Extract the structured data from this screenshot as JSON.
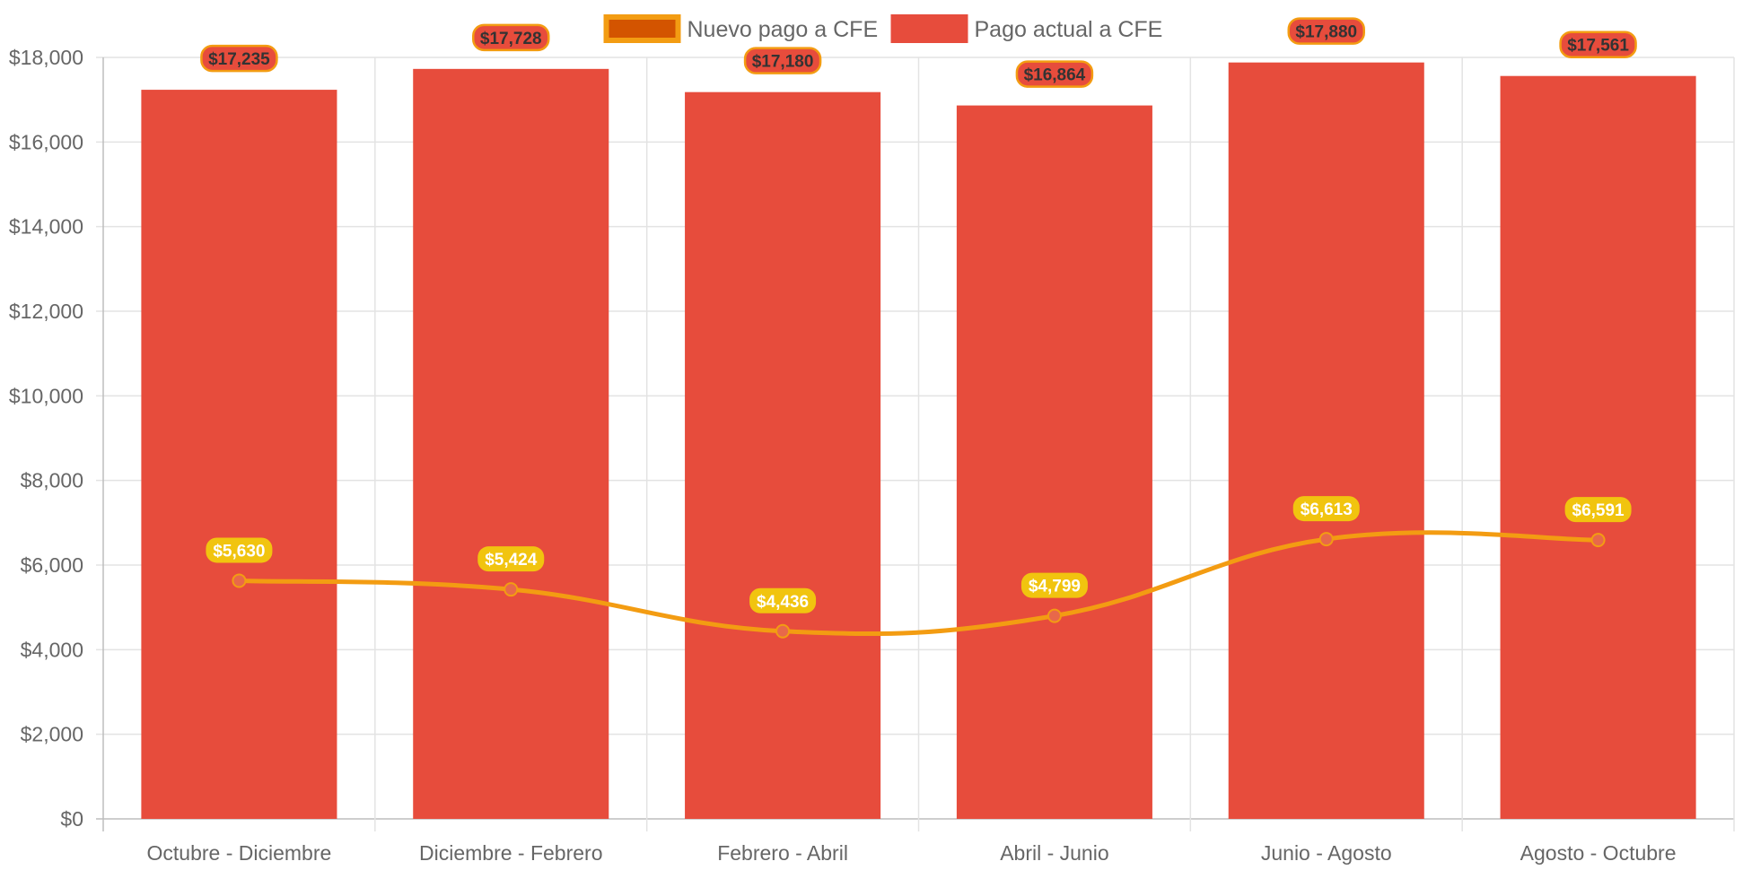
{
  "chart_data": {
    "type": "bar",
    "categories": [
      "Octubre - Diciembre",
      "Diciembre - Febrero",
      "Febrero - Abril",
      "Abril - Junio",
      "Junio - Agosto",
      "Agosto - Octubre"
    ],
    "series": [
      {
        "name": "Nuevo pago a CFE",
        "type": "line",
        "values": [
          5630,
          5424,
          4436,
          4799,
          6613,
          6591
        ],
        "labels": [
          "$5,630",
          "$5,424",
          "$4,436",
          "$4,799",
          "$6,613",
          "$6,591"
        ],
        "color": "#f39c12",
        "point_color": "#e8684a",
        "label_bg": "#f1c40f"
      },
      {
        "name": "Pago actual a CFE",
        "type": "bar",
        "values": [
          17235,
          17728,
          17180,
          16864,
          17880,
          17561
        ],
        "labels": [
          "$17,235",
          "$17,728",
          "$17,180",
          "$16,864",
          "$17,880",
          "$17,561"
        ],
        "color": "#e74c3c",
        "label_border": "#f39c12"
      }
    ],
    "legend": {
      "position": "top",
      "items": [
        {
          "name": "Nuevo pago a CFE",
          "fill": "#d35400",
          "border": "#f39c12"
        },
        {
          "name": "Pago actual a CFE",
          "fill": "#e74c3c",
          "border": "#e74c3c"
        }
      ]
    },
    "y_ticks": [
      "$0",
      "$2,000",
      "$4,000",
      "$6,000",
      "$8,000",
      "$10,000",
      "$12,000",
      "$14,000",
      "$16,000",
      "$18,000"
    ],
    "ylim": [
      0,
      18000
    ],
    "grid": true,
    "title": "",
    "xlabel": "",
    "ylabel": ""
  }
}
